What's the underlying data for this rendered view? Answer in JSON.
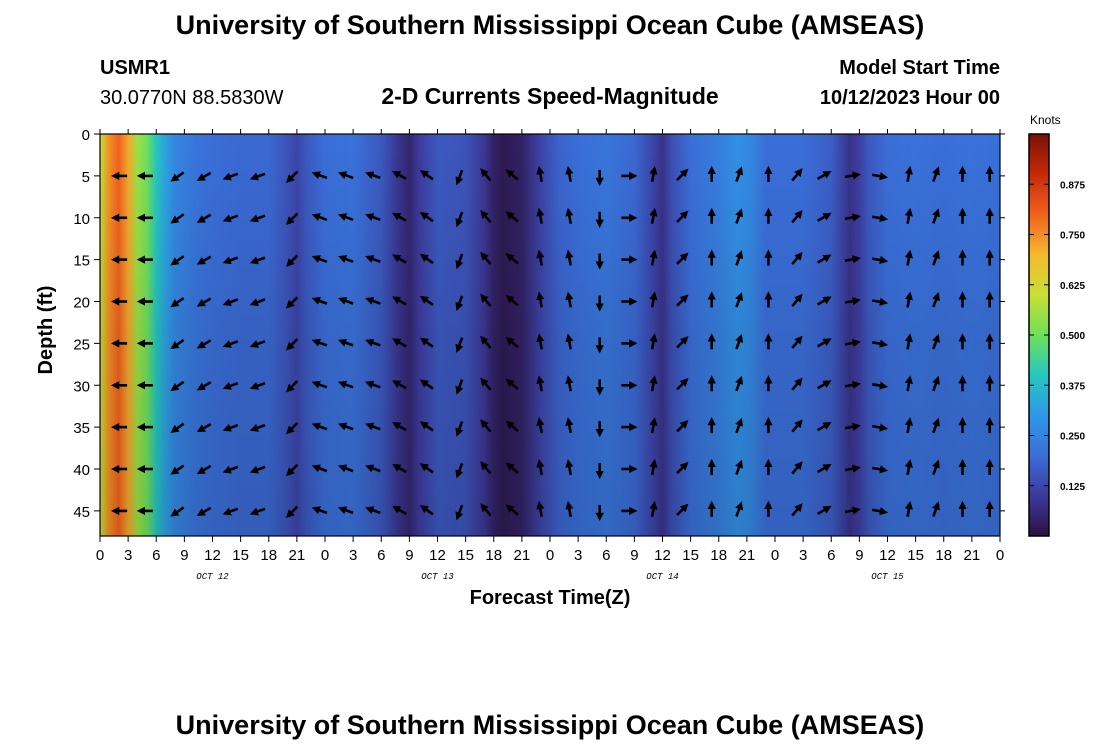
{
  "header": {
    "title": "University of Southern Mississippi Ocean Cube (AMSEAS)",
    "station_id": "USMR1",
    "coords": "30.0770N  88.5830W",
    "subtitle": "2-D Currents Speed-Magnitude",
    "model_start_label": "Model Start Time",
    "model_start_value": "10/12/2023 Hour 00"
  },
  "footer": {
    "title": "University of Southern Mississippi Ocean Cube (AMSEAS)"
  },
  "colorbar": {
    "units": "Knots",
    "tick_labels": [
      "0.875",
      "0.750",
      "0.625",
      "0.500",
      "0.375",
      "0.250",
      "0.125"
    ],
    "tick_values": [
      0.875,
      0.75,
      0.625,
      0.5,
      0.375,
      0.25,
      0.125
    ],
    "range": [
      0,
      1
    ],
    "stops": [
      "#2a1240",
      "#3d3a9c",
      "#3a6ed8",
      "#2f98e8",
      "#25c7c0",
      "#6fe05a",
      "#c8e034",
      "#f5b92e",
      "#f0621e",
      "#c62a06",
      "#7a1205"
    ]
  },
  "chart_data": {
    "type": "heatmap",
    "title": "2-D Currents Speed-Magnitude",
    "xlabel": "Forecast Time(Z)",
    "ylabel": "Depth (ft)",
    "x_tick_labels": [
      "0",
      "3",
      "6",
      "9",
      "12",
      "15",
      "18",
      "21",
      "0",
      "3",
      "6",
      "9",
      "12",
      "15",
      "18",
      "21",
      "0",
      "3",
      "6",
      "9",
      "12",
      "15",
      "18",
      "21",
      "0",
      "3",
      "6",
      "9",
      "12",
      "15",
      "18",
      "21",
      "0"
    ],
    "day_labels": [
      {
        "label": "OCT 12",
        "hour": 12
      },
      {
        "label": "OCT 13",
        "hour": 36
      },
      {
        "label": "OCT 14",
        "hour": 60
      },
      {
        "label": "OCT 15",
        "hour": 84
      }
    ],
    "xlim_hours": [
      0,
      96
    ],
    "y_ticks": [
      0,
      5,
      10,
      15,
      20,
      25,
      30,
      35,
      40,
      45
    ],
    "ylim_ft": [
      0,
      48
    ],
    "speed_profile_hours": [
      0,
      1,
      2,
      3,
      4,
      5,
      6,
      7,
      8,
      9,
      10,
      12,
      15,
      18,
      20,
      21,
      22,
      24,
      27,
      30,
      32,
      33,
      34,
      36,
      39,
      41,
      42,
      43,
      45,
      47,
      49,
      51,
      54,
      57,
      59,
      60,
      61,
      63,
      66,
      68,
      69,
      70,
      71,
      72,
      75,
      78,
      80,
      81,
      82,
      84,
      87,
      90,
      93,
      96
    ],
    "speed_profile_knots": [
      0.6,
      0.75,
      0.8,
      0.72,
      0.55,
      0.5,
      0.4,
      0.32,
      0.26,
      0.24,
      0.22,
      0.2,
      0.19,
      0.19,
      0.15,
      0.12,
      0.16,
      0.2,
      0.21,
      0.16,
      0.08,
      0.05,
      0.1,
      0.16,
      0.15,
      0.09,
      0.04,
      0.02,
      0.04,
      0.12,
      0.18,
      0.2,
      0.22,
      0.19,
      0.12,
      0.08,
      0.14,
      0.2,
      0.24,
      0.28,
      0.27,
      0.24,
      0.2,
      0.2,
      0.2,
      0.17,
      0.08,
      0.11,
      0.16,
      0.2,
      0.21,
      0.2,
      0.21,
      0.2
    ],
    "arrow_times_hours": [
      2.25,
      5.0,
      8.4,
      11.25,
      14.1,
      17.0,
      20.6,
      23.6,
      26.4,
      29.3,
      32.1,
      35.0,
      38.4,
      41.25,
      44.1,
      47.0,
      50.1,
      53.3,
      56.25,
      59.0,
      62.0,
      65.25,
      68.1,
      71.3,
      74.25,
      77.1,
      80.1,
      83.0,
      86.25,
      89.1,
      92.0,
      94.9
    ],
    "arrow_depths_ft": [
      5,
      10,
      15,
      20,
      25,
      30,
      35,
      40,
      45
    ],
    "arrow_direction_deg_clockwise_from_up": [
      270,
      270,
      235,
      240,
      250,
      250,
      225,
      290,
      290,
      290,
      300,
      305,
      200,
      320,
      310,
      350,
      350,
      180,
      90,
      10,
      45,
      0,
      20,
      0,
      40,
      60,
      80,
      100,
      10,
      20,
      0,
      0
    ]
  }
}
